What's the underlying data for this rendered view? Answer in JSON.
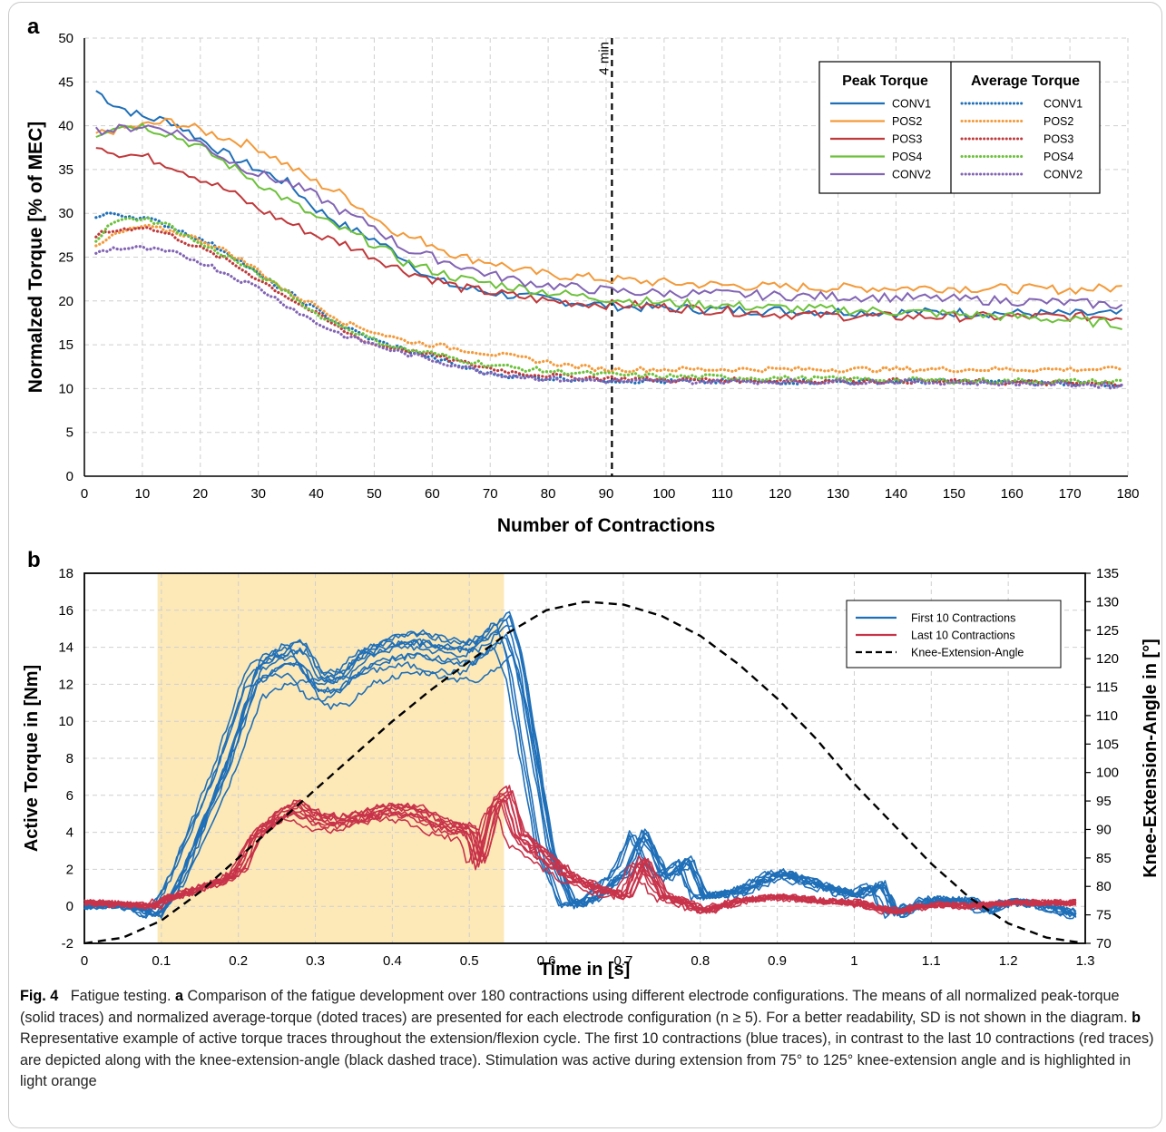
{
  "chart_data": [
    {
      "panel": "a",
      "type": "line",
      "xlabel": "Number of Contractions",
      "ylabel": "Normalzed Torque [% of MEC]",
      "xlim": [
        0,
        180
      ],
      "ylim": [
        0,
        50
      ],
      "xticks": [
        0,
        10,
        20,
        30,
        40,
        50,
        60,
        70,
        80,
        90,
        100,
        110,
        120,
        130,
        140,
        150,
        160,
        170,
        180
      ],
      "yticks": [
        0,
        5,
        10,
        15,
        20,
        25,
        30,
        35,
        40,
        45,
        50
      ],
      "grid": true,
      "annotation": {
        "x": 91,
        "label": "4 min"
      },
      "legend": {
        "placement": "top-right",
        "peak_header": "Peak Torque",
        "avg_header": "Average Torque",
        "entries": [
          "CONV1",
          "POS2",
          "POS3",
          "POS4",
          "CONV2"
        ]
      },
      "series": [
        {
          "name": "CONV1",
          "group": "Peak Torque",
          "style": "solid",
          "color": "#1f6fb8",
          "x": [
            2,
            5,
            10,
            15,
            20,
            25,
            30,
            35,
            40,
            45,
            50,
            55,
            60,
            65,
            70,
            75,
            80,
            85,
            90,
            95,
            100,
            110,
            120,
            130,
            140,
            150,
            160,
            170,
            179
          ],
          "y": [
            44,
            42.5,
            41,
            40.5,
            38.5,
            36.5,
            35,
            33.5,
            30.5,
            28.5,
            27,
            25,
            22.5,
            21.5,
            21,
            20.5,
            20.2,
            19.8,
            19.5,
            19.3,
            19.2,
            19,
            18.9,
            18.8,
            18.7,
            18.7,
            18.6,
            18.5,
            18.5
          ]
        },
        {
          "name": "POS2",
          "group": "Peak Torque",
          "style": "solid",
          "color": "#f39a3a",
          "x": [
            2,
            5,
            10,
            15,
            20,
            25,
            30,
            35,
            40,
            45,
            50,
            55,
            60,
            65,
            70,
            75,
            80,
            85,
            90,
            95,
            100,
            110,
            120,
            130,
            140,
            150,
            160,
            170,
            179
          ],
          "y": [
            39,
            39.5,
            40,
            40.5,
            39.5,
            38.5,
            37.5,
            35.5,
            33.5,
            32,
            29.5,
            27.5,
            26.5,
            25,
            24.5,
            23.5,
            23,
            22.8,
            22.5,
            22.3,
            22.1,
            21.8,
            21.6,
            21.5,
            21.5,
            21.5,
            21.4,
            21.3,
            21.5
          ]
        },
        {
          "name": "POS3",
          "group": "Peak Torque",
          "style": "solid",
          "color": "#c0393b",
          "x": [
            2,
            5,
            10,
            15,
            20,
            25,
            30,
            35,
            40,
            45,
            50,
            55,
            60,
            65,
            70,
            75,
            80,
            85,
            90,
            95,
            100,
            110,
            120,
            130,
            140,
            150,
            160,
            170,
            179
          ],
          "y": [
            38,
            37,
            36.5,
            35.5,
            34,
            32.5,
            30.5,
            29,
            27.5,
            26.5,
            25,
            23.5,
            22.5,
            21.5,
            21,
            20.5,
            20,
            19.8,
            19.6,
            19.5,
            19.3,
            18.9,
            18.5,
            18.3,
            18.2,
            18.2,
            18.2,
            18.2,
            18.2
          ]
        },
        {
          "name": "POS4",
          "group": "Peak Torque",
          "style": "solid",
          "color": "#6cc13a",
          "x": [
            2,
            5,
            10,
            15,
            20,
            25,
            30,
            35,
            40,
            45,
            50,
            55,
            60,
            65,
            70,
            75,
            80,
            85,
            90,
            95,
            100,
            110,
            120,
            130,
            140,
            150,
            160,
            170,
            179
          ],
          "y": [
            39,
            40,
            40,
            39,
            37.5,
            35.5,
            33.5,
            31.5,
            29.5,
            28,
            26.5,
            24.5,
            23.5,
            22.5,
            22,
            21.5,
            21,
            20.6,
            20.3,
            20,
            19.8,
            19.5,
            19.2,
            19,
            18.8,
            18.5,
            18.2,
            17.8,
            17.3
          ]
        },
        {
          "name": "CONV2",
          "group": "Peak Torque",
          "style": "solid",
          "color": "#8264b4",
          "x": [
            2,
            5,
            10,
            15,
            20,
            25,
            30,
            35,
            40,
            45,
            50,
            55,
            60,
            65,
            70,
            75,
            80,
            85,
            90,
            95,
            100,
            110,
            120,
            130,
            140,
            150,
            160,
            170,
            179
          ],
          "y": [
            39.5,
            39.5,
            40,
            39.5,
            38,
            36,
            34.5,
            33.5,
            32,
            30,
            28.5,
            26,
            25,
            24,
            23,
            22.3,
            21.8,
            21.5,
            21.2,
            21,
            20.9,
            20.8,
            20.6,
            20.5,
            20.4,
            20.2,
            20,
            19.8,
            19.5
          ]
        },
        {
          "name": "CONV1",
          "group": "Average Torque",
          "style": "dotted",
          "color": "#1f6fb8",
          "x": [
            2,
            5,
            10,
            15,
            20,
            25,
            30,
            35,
            40,
            45,
            50,
            55,
            60,
            65,
            70,
            75,
            80,
            85,
            90,
            95,
            100,
            110,
            120,
            130,
            140,
            150,
            160,
            170,
            179
          ],
          "y": [
            29.5,
            30,
            29.5,
            28.5,
            27,
            25.5,
            23,
            21,
            19,
            17,
            15.5,
            14.5,
            13.5,
            12.5,
            11.7,
            11.4,
            11.2,
            11.1,
            11,
            10.9,
            10.8,
            10.8,
            10.8,
            10.8,
            10.8,
            10.8,
            10.7,
            10.6,
            10.5
          ]
        },
        {
          "name": "POS2",
          "group": "Average Torque",
          "style": "dotted",
          "color": "#f39a3a",
          "x": [
            2,
            5,
            10,
            15,
            20,
            25,
            30,
            35,
            40,
            45,
            50,
            55,
            60,
            65,
            70,
            75,
            80,
            85,
            90,
            95,
            100,
            110,
            120,
            130,
            140,
            150,
            160,
            170,
            179
          ],
          "y": [
            26,
            27.5,
            28.5,
            28,
            27,
            25.5,
            23.5,
            21,
            19.5,
            17.5,
            16.5,
            15.5,
            15,
            14.5,
            14,
            13.5,
            13,
            12.5,
            12.2,
            12.2,
            12.2,
            12.2,
            12.2,
            12.2,
            12.2,
            12.2,
            12.2,
            12.2,
            12.2
          ]
        },
        {
          "name": "POS3",
          "group": "Average Torque",
          "style": "dotted",
          "color": "#c0393b",
          "x": [
            2,
            5,
            10,
            15,
            20,
            25,
            30,
            35,
            40,
            45,
            50,
            55,
            60,
            65,
            70,
            75,
            80,
            85,
            90,
            95,
            100,
            110,
            120,
            130,
            140,
            150,
            160,
            170,
            179
          ],
          "y": [
            27.5,
            28,
            28.5,
            27.5,
            26,
            24.5,
            22.5,
            20.5,
            18.5,
            16.5,
            15,
            14.5,
            13.8,
            13,
            12.3,
            11.8,
            11.5,
            11.3,
            11.2,
            11.1,
            11,
            11,
            10.9,
            10.9,
            10.9,
            10.8,
            10.7,
            10.6,
            10.5
          ]
        },
        {
          "name": "POS4",
          "group": "Average Torque",
          "style": "dotted",
          "color": "#6cc13a",
          "x": [
            2,
            5,
            10,
            15,
            20,
            25,
            30,
            35,
            40,
            45,
            50,
            55,
            60,
            65,
            70,
            75,
            80,
            85,
            90,
            95,
            100,
            110,
            120,
            130,
            140,
            150,
            160,
            170,
            179
          ],
          "y": [
            27,
            29,
            29.5,
            28.5,
            26.5,
            25,
            23,
            21,
            18.5,
            17,
            15.5,
            14.5,
            14,
            13.3,
            12.7,
            12.3,
            12,
            11.8,
            11.6,
            11.5,
            11.4,
            11.3,
            11.2,
            11.1,
            11,
            10.9,
            10.9,
            10.8,
            10.8
          ]
        },
        {
          "name": "CONV2",
          "group": "Average Torque",
          "style": "dotted",
          "color": "#8264b4",
          "x": [
            2,
            5,
            10,
            15,
            20,
            25,
            30,
            35,
            40,
            45,
            50,
            55,
            60,
            65,
            70,
            75,
            80,
            85,
            90,
            95,
            100,
            110,
            120,
            130,
            140,
            150,
            160,
            170,
            179
          ],
          "y": [
            25.5,
            26,
            26,
            25.5,
            24.5,
            23,
            21.5,
            19.5,
            17.5,
            16,
            15,
            14,
            13.3,
            12.5,
            11.8,
            11.4,
            11.1,
            11,
            10.9,
            10.8,
            10.8,
            10.8,
            10.8,
            10.8,
            10.8,
            10.7,
            10.6,
            10.5,
            10.3
          ]
        }
      ]
    },
    {
      "panel": "b",
      "type": "line",
      "xlabel": "Time in [s]",
      "ylabel": "Active Torque in [Nm]",
      "y2label": "Knee-Extension-Angle in [°]",
      "xlim": [
        0,
        1.3
      ],
      "ylim": [
        -2,
        18
      ],
      "y2lim": [
        70,
        135
      ],
      "xticks": [
        0,
        0.1,
        0.2,
        0.3,
        0.4,
        0.5,
        0.6,
        0.7,
        0.8,
        0.9,
        1,
        1.1,
        1.2,
        1.3
      ],
      "xtick_labels": [
        "0",
        "0.1",
        "0.2",
        "0.3",
        "0.4",
        "0.5",
        "0.6",
        "0.7",
        "0.8",
        "0.9",
        "1",
        "1.1",
        "1.2",
        "1.3"
      ],
      "yticks": [
        -2,
        0,
        2,
        4,
        6,
        8,
        10,
        12,
        14,
        16,
        18
      ],
      "y2ticks": [
        70,
        75,
        80,
        85,
        90,
        95,
        100,
        105,
        110,
        115,
        120,
        125,
        130,
        135
      ],
      "grid": true,
      "highlight": {
        "x_start": 0.095,
        "x_end": 0.545,
        "color": "#fde9b8"
      },
      "legend": {
        "placement": "top-right",
        "entries": [
          "First 10 Contractions",
          "Last 10 Contractions",
          "Knee-Extension-Angle"
        ]
      },
      "series": [
        {
          "name": "First 10 Contractions",
          "color": "#1f6fb8",
          "style": "solid",
          "x": [
            0,
            0.05,
            0.09,
            0.1,
            0.12,
            0.15,
            0.18,
            0.2,
            0.22,
            0.25,
            0.28,
            0.3,
            0.33,
            0.36,
            0.4,
            0.43,
            0.46,
            0.5,
            0.53,
            0.545,
            0.56,
            0.6,
            0.63,
            0.66,
            0.7,
            0.72,
            0.75,
            0.78,
            0.8,
            0.85,
            0.9,
            0.95,
            1.0,
            1.03,
            1.05,
            1.1,
            1.15,
            1.17,
            1.2,
            1.25,
            1.29
          ],
          "y": [
            0,
            0.1,
            -0.5,
            0,
            1.5,
            4.5,
            7.5,
            10,
            12.5,
            13.3,
            13.5,
            12,
            12,
            13.3,
            13.8,
            14,
            13.7,
            13.5,
            14.5,
            15,
            13,
            3,
            0,
            0.5,
            2,
            4,
            1.5,
            2.5,
            0.5,
            0.8,
            1.8,
            1.2,
            0.6,
            1.2,
            -0.5,
            0.4,
            0.3,
            -0.3,
            0.3,
            0,
            -0.5
          ]
        },
        {
          "name": "Last 10 Contractions",
          "color": "#c8334a",
          "style": "solid",
          "x": [
            0,
            0.05,
            0.09,
            0.1,
            0.12,
            0.15,
            0.18,
            0.2,
            0.22,
            0.25,
            0.27,
            0.3,
            0.33,
            0.36,
            0.4,
            0.43,
            0.46,
            0.5,
            0.51,
            0.53,
            0.545,
            0.56,
            0.6,
            0.63,
            0.66,
            0.7,
            0.72,
            0.75,
            0.78,
            0.8,
            0.85,
            0.9,
            0.95,
            1.0,
            1.05,
            1.1,
            1.15,
            1.2,
            1.25,
            1.29
          ],
          "y": [
            0.2,
            0.1,
            0,
            0.3,
            0.6,
            1,
            1.4,
            2,
            3.8,
            4.8,
            5.3,
            4.7,
            4.5,
            4.8,
            5.2,
            5,
            4.3,
            4,
            2.2,
            5.5,
            6,
            3.8,
            2.5,
            1.5,
            1,
            0.5,
            2.5,
            0.5,
            0.2,
            -0.3,
            0.3,
            0.5,
            0.3,
            0.2,
            -0.3,
            0.1,
            0,
            0.2,
            0.2,
            0.2
          ]
        },
        {
          "name": "Knee-Extension-Angle",
          "color": "#000000",
          "style": "dashed",
          "axis": "right",
          "x": [
            0,
            0.05,
            0.1,
            0.15,
            0.2,
            0.25,
            0.3,
            0.35,
            0.4,
            0.45,
            0.5,
            0.55,
            0.6,
            0.65,
            0.7,
            0.75,
            0.8,
            0.85,
            0.9,
            0.95,
            1.0,
            1.05,
            1.1,
            1.15,
            1.2,
            1.25,
            1.3
          ],
          "y": [
            70,
            71,
            74,
            79,
            85,
            91,
            97,
            103,
            109,
            114.5,
            119.5,
            124.5,
            128.5,
            130,
            129.5,
            127.5,
            124,
            119,
            113,
            106,
            98,
            91,
            84,
            78,
            73.5,
            71,
            70
          ]
        }
      ]
    }
  ],
  "caption": {
    "fig_label": "Fig. 4",
    "title": "Fatigue testing.",
    "a_label": "a",
    "a_text": "Comparison of the fatigue development over 180 contractions using different electrode configurations. The means of all normalized peak-torque (solid traces) and normalized average-torque (doted traces) are presented for each electrode configuration (n ≥ 5). For a better readability, SD is not shown in the diagram.",
    "b_label": "b",
    "b_text": "Representative example of active torque traces throughout the extension/flexion cycle. The first 10 contractions (blue traces), in contrast to the last 10 contractions (red traces) are depicted along with the knee-extension-angle (black dashed trace). Stimulation was active during extension from 75° to 125° knee-extension angle and is highlighted in light orange"
  }
}
